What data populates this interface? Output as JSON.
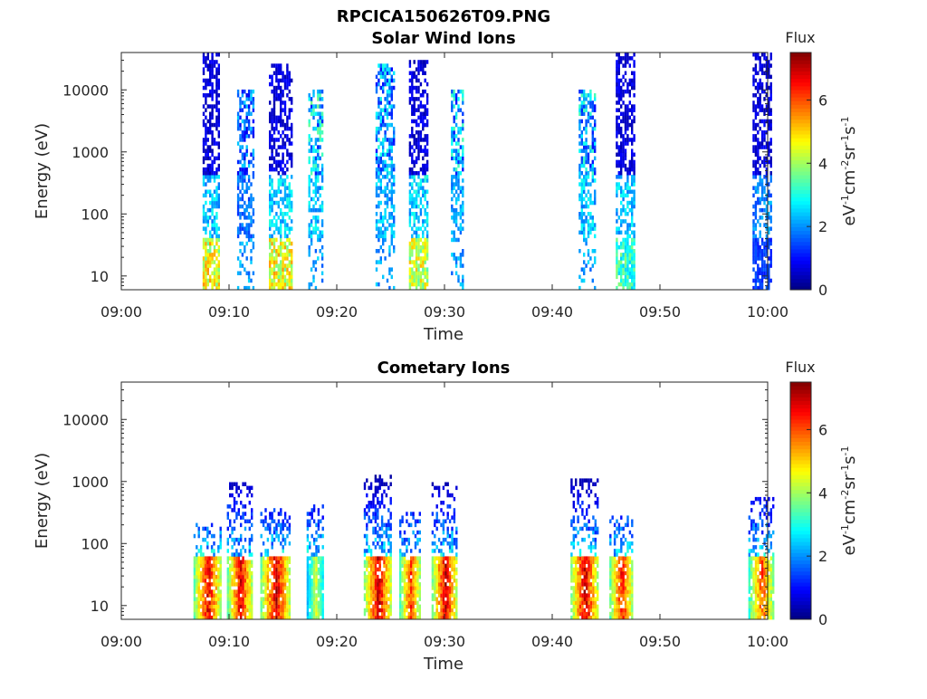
{
  "figure_title": "RPCICA150626T09.PNG",
  "chart_data": [
    {
      "type": "heatmap",
      "title": "Solar Wind Ions",
      "xlabel": "Time",
      "ylabel": "Energy (eV)",
      "x_range": [
        "09:00",
        "10:00"
      ],
      "x_ticks": [
        "09:00",
        "09:10",
        "09:20",
        "09:30",
        "09:40",
        "09:50",
        "10:00"
      ],
      "y_scale": "log",
      "y_range": [
        6,
        40000
      ],
      "y_ticks": [
        "10",
        "100",
        "1000",
        "10000"
      ],
      "colorbar": {
        "title": "Flux",
        "label": "eV-1cm-2sr-1s-1",
        "range": [
          0,
          7.5
        ],
        "ticks": [
          "0",
          "2",
          "4",
          "6"
        ],
        "colormap": "jet"
      },
      "bursts": [
        {
          "time_min": 8.3,
          "width_min": 1.5,
          "lowE_flux": 5.0,
          "midE_flux": 2.5,
          "highE_flux": 0.6,
          "max_energy": 35000
        },
        {
          "time_min": 11.5,
          "width_min": 1.5,
          "lowE_flux": 0,
          "midE_flux": 1.8,
          "highE_flux": 1.5,
          "max_energy": 9000
        },
        {
          "time_min": 14.8,
          "width_min": 2.2,
          "lowE_flux": 5.0,
          "midE_flux": 2.6,
          "highE_flux": 0.6,
          "max_energy": 25000
        },
        {
          "time_min": 18.0,
          "width_min": 1.3,
          "lowE_flux": 0,
          "midE_flux": 2.5,
          "highE_flux": 2.2,
          "max_energy": 10000
        },
        {
          "time_min": 24.5,
          "width_min": 1.8,
          "lowE_flux": 0,
          "midE_flux": 2.3,
          "highE_flux": 1.8,
          "max_energy": 25000
        },
        {
          "time_min": 27.6,
          "width_min": 1.8,
          "lowE_flux": 4.8,
          "midE_flux": 2.6,
          "highE_flux": 0.6,
          "max_energy": 30000
        },
        {
          "time_min": 31.2,
          "width_min": 1.2,
          "lowE_flux": 0,
          "midE_flux": 2.2,
          "highE_flux": 2.0,
          "max_energy": 10000
        },
        {
          "time_min": 43.2,
          "width_min": 1.5,
          "lowE_flux": 0,
          "midE_flux": 2.5,
          "highE_flux": 2.0,
          "max_energy": 10000
        },
        {
          "time_min": 46.8,
          "width_min": 1.8,
          "lowE_flux": 3.5,
          "midE_flux": 2.5,
          "highE_flux": 0.6,
          "max_energy": 35000
        },
        {
          "time_min": 59.5,
          "width_min": 1.8,
          "lowE_flux": 1.5,
          "midE_flux": 2.0,
          "highE_flux": 0.6,
          "max_energy": 38000
        }
      ]
    },
    {
      "type": "heatmap",
      "title": "Cometary Ions",
      "xlabel": "Time",
      "ylabel": "Energy (eV)",
      "x_range": [
        "09:00",
        "10:00"
      ],
      "x_ticks": [
        "09:00",
        "09:10",
        "09:20",
        "09:30",
        "09:40",
        "09:50",
        "10:00"
      ],
      "y_scale": "log",
      "y_range": [
        6,
        40000
      ],
      "y_ticks": [
        "10",
        "100",
        "1000",
        "10000"
      ],
      "colorbar": {
        "title": "Flux",
        "label": "eV-1cm-2sr-1s-1",
        "range": [
          0,
          7.5
        ],
        "ticks": [
          "0",
          "2",
          "4",
          "6"
        ],
        "colormap": "jet"
      },
      "bursts": [
        {
          "time_min": 8.0,
          "width_min": 2.6,
          "peak_flux": 7.0,
          "max_energy": 200
        },
        {
          "time_min": 11.0,
          "width_min": 2.4,
          "peak_flux": 7.0,
          "max_energy": 900
        },
        {
          "time_min": 14.3,
          "width_min": 2.8,
          "peak_flux": 7.2,
          "max_energy": 350
        },
        {
          "time_min": 18.0,
          "width_min": 1.6,
          "peak_flux": 4.5,
          "max_energy": 400
        },
        {
          "time_min": 23.8,
          "width_min": 2.6,
          "peak_flux": 7.3,
          "max_energy": 1200
        },
        {
          "time_min": 26.8,
          "width_min": 2.0,
          "peak_flux": 6.5,
          "max_energy": 300
        },
        {
          "time_min": 30.0,
          "width_min": 2.4,
          "peak_flux": 7.2,
          "max_energy": 900
        },
        {
          "time_min": 43.0,
          "width_min": 2.6,
          "peak_flux": 7.3,
          "max_energy": 1000
        },
        {
          "time_min": 46.4,
          "width_min": 2.2,
          "peak_flux": 6.8,
          "max_energy": 250
        },
        {
          "time_min": 59.4,
          "width_min": 2.4,
          "peak_flux": 6.3,
          "max_energy": 500
        }
      ]
    }
  ]
}
